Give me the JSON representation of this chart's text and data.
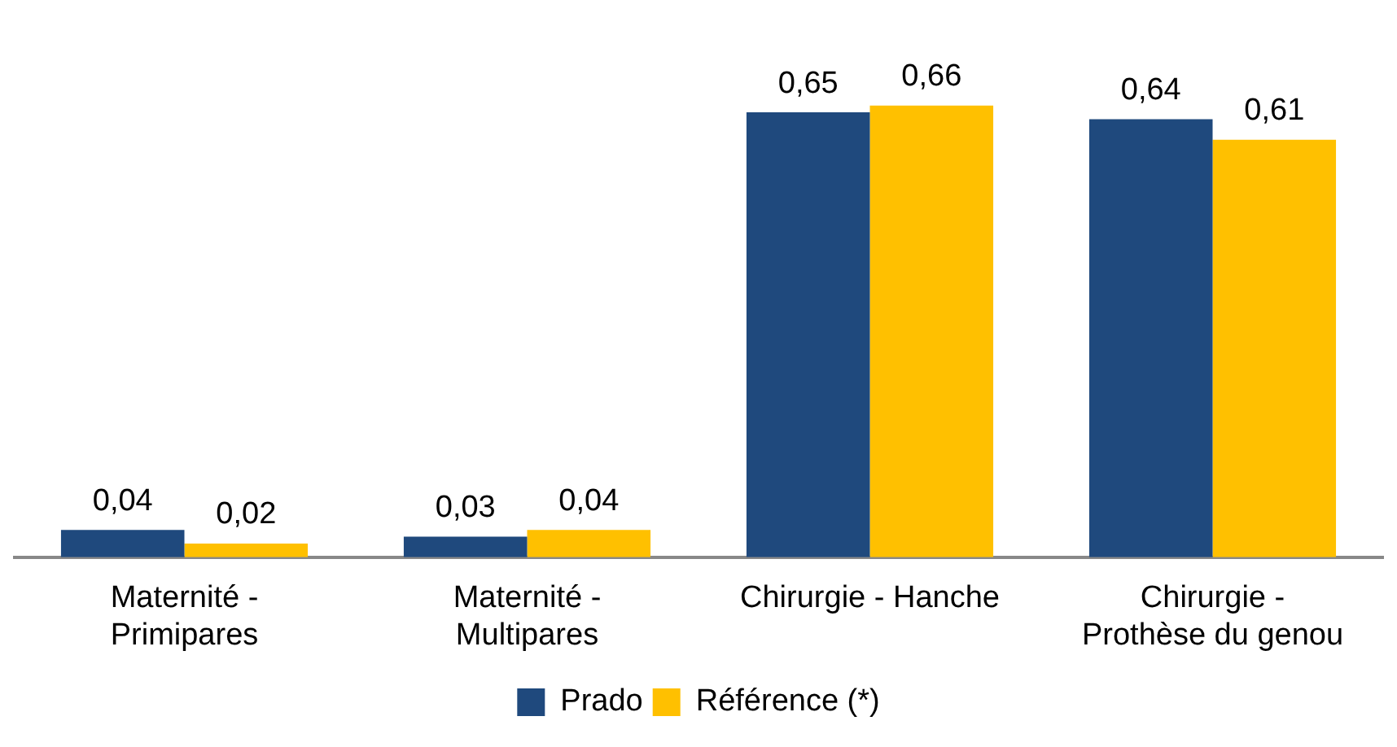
{
  "chart_data": {
    "type": "bar",
    "categories": [
      "Maternité - Primipares",
      "Maternité - Multipares",
      "Chirurgie - Hanche",
      "Chirurgie - Prothèse du genou"
    ],
    "series": [
      {
        "name": "Prado",
        "color": "#1f497d",
        "values": [
          0.04,
          0.03,
          0.65,
          0.64
        ],
        "value_labels": [
          "0,04",
          "0,03",
          "0,65",
          "0,64"
        ]
      },
      {
        "name": "Référence (*)",
        "color": "#ffc000",
        "values": [
          0.02,
          0.04,
          0.66,
          0.61
        ],
        "value_labels": [
          "0,02",
          "0,04",
          "0,66",
          "0,61"
        ]
      }
    ],
    "legend": "bottom"
  }
}
